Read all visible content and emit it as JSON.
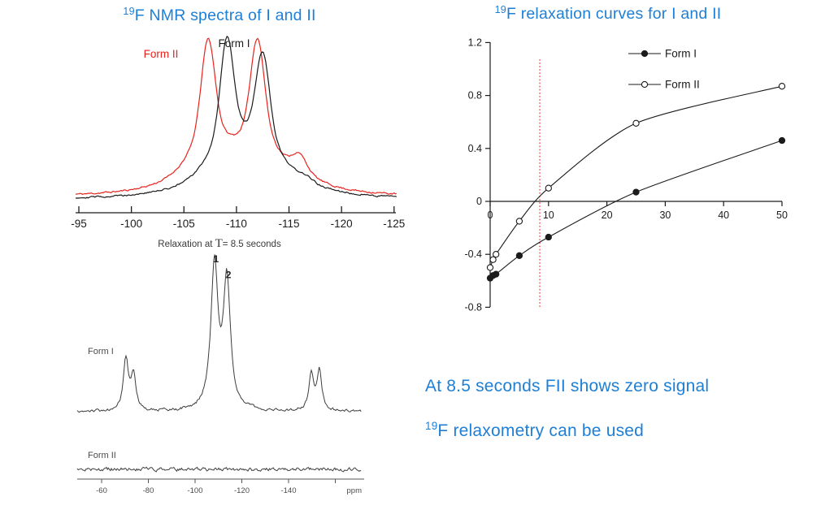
{
  "colors": {
    "accent_blue": "#1e7fd6",
    "black_trace": "#1b1b1b",
    "red_trace": "#e8231c",
    "gray_trace": "#3d3d3d",
    "marker_line_red": "#ff2020",
    "axis_color": "#1b1b1b"
  },
  "left_panel": {
    "title": {
      "sup": "19",
      "text": "F NMR spectra of I and II"
    },
    "caption": {
      "prefix": "Relaxation at ",
      "t_symbol": "T",
      "suffix": "= 8.5 seconds"
    }
  },
  "right_panel": {
    "title": {
      "sup": "19",
      "text": "F relaxation curves for I and II"
    }
  },
  "notes": {
    "line1": "At 8.5 seconds FII shows zero signal",
    "line2_sup": "19",
    "line2_text": "F relaxometry can be used"
  },
  "chart_data": [
    {
      "id": "nmr_overlay",
      "type": "line",
      "description": "Overlaid 19F NMR spectra of Form I (black) and Form II (red)",
      "x_ticks": [
        -95,
        -100,
        -105,
        -110,
        -115,
        -120,
        -125
      ],
      "x_range": [
        -95,
        -125
      ],
      "series": [
        {
          "name": "Form II",
          "color_key": "red_trace",
          "shape": "pvoigt",
          "peaks": [
            {
              "c": -107.3,
              "h": 1.0,
              "w": 1.0
            },
            {
              "c": -112.0,
              "h": 0.99,
              "w": 1.0
            },
            {
              "c": -116.0,
              "h": 0.17,
              "w": 1.1
            }
          ]
        },
        {
          "name": "Form I",
          "color_key": "black_trace",
          "shape": "pvoigt",
          "peaks": [
            {
              "c": -109.1,
              "h": 1.0,
              "w": 0.95
            },
            {
              "c": -112.5,
              "h": 0.88,
              "w": 1.0
            },
            {
              "c": -116.5,
              "h": 0.05,
              "w": 1.2
            }
          ]
        }
      ]
    },
    {
      "id": "nmr_stacked",
      "type": "line",
      "description": "19F NMR spectra acquired with 8.5 s relaxation: Form I shows peaks, Form II only noise",
      "x_ticks": [
        -60,
        -80,
        -100,
        -120,
        -140
      ],
      "extra_tick": -160,
      "unit_label": "ppm",
      "series": [
        {
          "name": "Form I",
          "color_key": "gray_trace",
          "shape": "lorentz",
          "peaks": [
            {
              "c": -70.4,
              "h": 0.35,
              "w": 1.3
            },
            {
              "c": -73.6,
              "h": 0.25,
              "w": 1.2
            },
            {
              "c": -108.3,
              "h": 1.0,
              "w": 1.8,
              "label": "1"
            },
            {
              "c": -113.6,
              "h": 0.89,
              "w": 1.8,
              "label": "2"
            },
            {
              "c": -149.7,
              "h": 0.25,
              "w": 1.2
            },
            {
              "c": -153.2,
              "h": 0.29,
              "w": 1.2
            }
          ]
        },
        {
          "name": "Form II",
          "color_key": "gray_trace",
          "shape": "lorentz",
          "peaks": []
        }
      ]
    },
    {
      "id": "relaxation",
      "type": "line",
      "title": "19F relaxation curves for I and II",
      "x_ticks": [
        0,
        10,
        20,
        30,
        40,
        50
      ],
      "y_ticks": [
        -0.8,
        -0.4,
        0,
        0.4,
        0.8,
        1.2
      ],
      "xlim": [
        0,
        50
      ],
      "ylim": [
        -0.8,
        1.2
      ],
      "marker_line_x": 8.5,
      "legend_position": "top-inside",
      "series": [
        {
          "name": "Form I",
          "marker": "filled-circle",
          "x": [
            0,
            0.5,
            1,
            5,
            10,
            25,
            50
          ],
          "y": [
            -0.58,
            -0.56,
            -0.55,
            -0.41,
            -0.27,
            0.07,
            0.46
          ]
        },
        {
          "name": "Form II",
          "marker": "open-circle",
          "x": [
            0,
            0.5,
            1,
            5,
            10,
            25,
            50
          ],
          "y": [
            -0.5,
            -0.44,
            -0.4,
            -0.15,
            0.1,
            0.59,
            0.87
          ]
        }
      ]
    }
  ]
}
